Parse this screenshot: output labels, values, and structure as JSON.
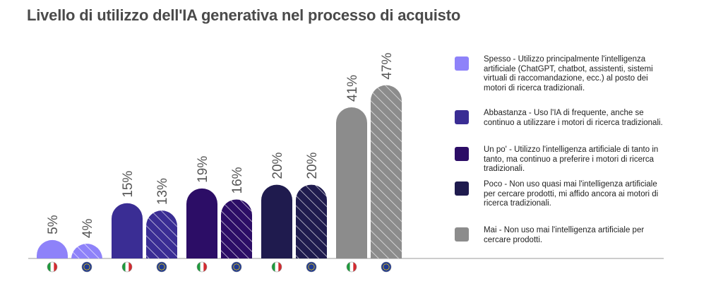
{
  "title": "Livello di utilizzo dell'IA generativa nel processo di acquisto",
  "chart_data": {
    "type": "bar",
    "categories": [
      "Spesso",
      "Abbastanza",
      "Un po'",
      "Poco",
      "Mai"
    ],
    "series": [
      {
        "name": "Italia",
        "flag_icon": "italy-flag-icon",
        "values": [
          5,
          15,
          19,
          20,
          41
        ]
      },
      {
        "name": "Europa",
        "flag_icon": "eu-flag-icon",
        "values": [
          4,
          13,
          16,
          20,
          47
        ]
      }
    ],
    "value_suffix": "%",
    "ylim": [
      0,
      50
    ],
    "grid": false,
    "legend_position": "right",
    "colors": [
      "#8e82f9",
      "#3a2d94",
      "#2c0d66",
      "#1f1b4e",
      "#8c8c8c"
    ],
    "hatch_second_series": true
  },
  "legend": [
    {
      "color": "#8e82f9",
      "text": "Spesso - Utilizzo principalmente l'intelligenza artificiale (ChatGPT, chatbot, assistenti, sistemi virtuali di raccomandazione, ecc.) al posto dei motori di ricerca tradizionali."
    },
    {
      "color": "#3a2d94",
      "text": "Abbastanza - Uso l'IA di frequente, anche se continuo a utilizzare i motori di ricerca tradizionali."
    },
    {
      "color": "#2c0d66",
      "text": "Un po' - Utilizzo l'intelligenza artificiale di tanto in tanto, ma continuo a preferire i motori di ricerca tradizionali."
    },
    {
      "color": "#1f1b4e",
      "text": "Poco - Non uso quasi mai l'intelligenza artificiale per cercare prodotti, mi affido ancora ai motori di ricerca tradizionali."
    },
    {
      "color": "#8c8c8c",
      "text": "Mai - Non uso mai l'intelligenza artificiale per cercare prodotti."
    }
  ]
}
